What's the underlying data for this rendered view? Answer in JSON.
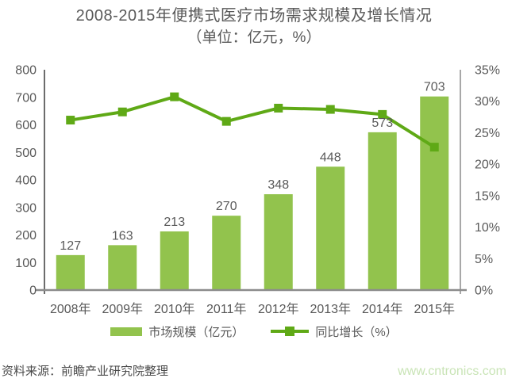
{
  "title": {
    "line1": "2008-2015年便携式医疗市场需求规模及增长情况",
    "line2": "（单位：亿元，%）"
  },
  "chart_data": {
    "type": "bar+line combo",
    "categories": [
      "2008年",
      "2009年",
      "2010年",
      "2011年",
      "2012年",
      "2013年",
      "2014年",
      "2015年"
    ],
    "series": [
      {
        "name": "市场规模（亿元）",
        "type": "bar",
        "axis": "left",
        "values": [
          127,
          163,
          213,
          270,
          348,
          448,
          573,
          703
        ],
        "color": "#92c34d"
      },
      {
        "name": "同比增长（%）",
        "type": "line",
        "axis": "right",
        "values": [
          27.0,
          28.3,
          30.7,
          26.8,
          28.9,
          28.7,
          27.9,
          22.7
        ],
        "color": "#5fa916",
        "marker": "square"
      }
    ],
    "left_axis": {
      "min": 0,
      "max": 800,
      "step": 100,
      "tick_labels": [
        "0",
        "100",
        "200",
        "300",
        "400",
        "500",
        "600",
        "700",
        "800"
      ]
    },
    "right_axis": {
      "min": 0,
      "max": 35,
      "step": 5,
      "tick_labels": [
        "0%",
        "5%",
        "10%",
        "15%",
        "20%",
        "25%",
        "30%",
        "35%"
      ]
    },
    "grid": false,
    "legend_position": "bottom",
    "bar_value_labels_shown": true
  },
  "legend": {
    "items": [
      {
        "label": "市场规模（亿元）",
        "swatch": "bar"
      },
      {
        "label": "同比增长（%）",
        "swatch": "line"
      }
    ]
  },
  "footer": {
    "source": "资料来源：前瞻产业研究院整理",
    "website": "www.cntronics.com"
  },
  "colors": {
    "bar": "#92c34d",
    "line": "#5fa916",
    "text": "#595959",
    "axis_left": "#3c3c3c",
    "axis_right": "#8c8c8c",
    "baseline": "#8c8c8c",
    "website": "#c9e4b6"
  }
}
